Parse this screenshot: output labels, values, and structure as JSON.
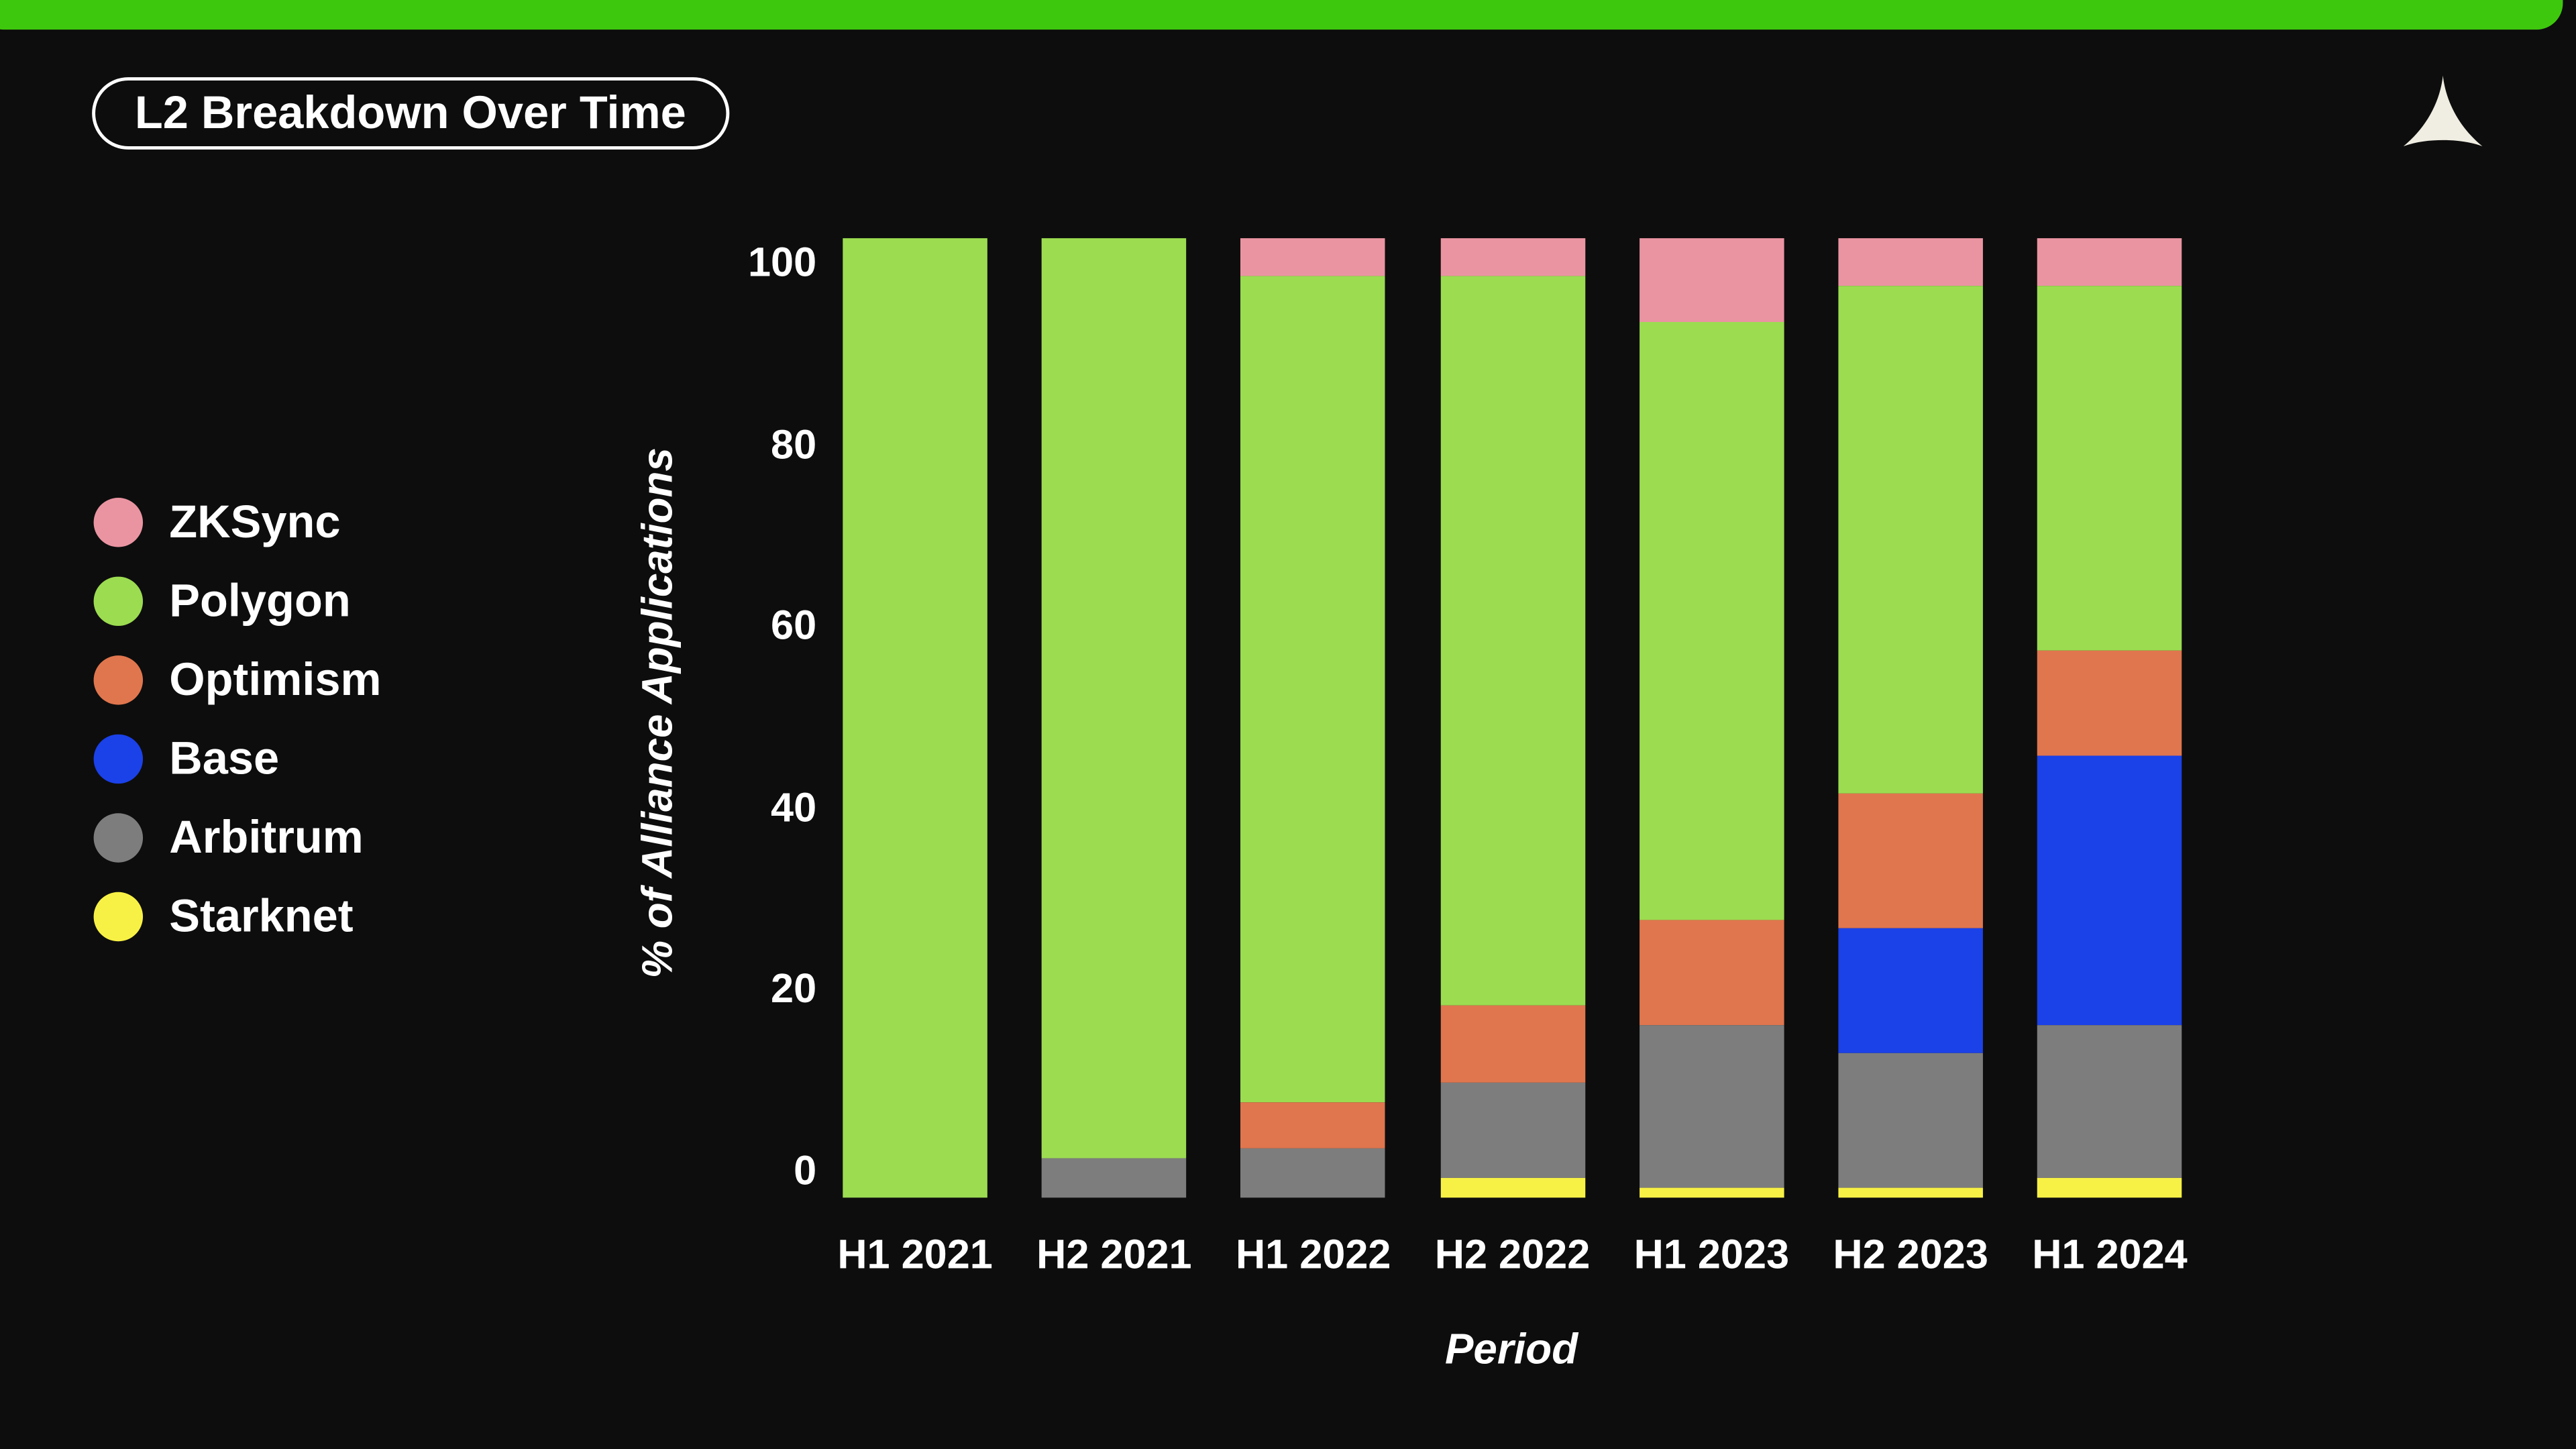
{
  "page": {
    "background": "#0d0d0d",
    "top_bar_color": "#3ec80d",
    "title": "L2 Breakdown Over Time",
    "logo": {
      "name": "artemis-triangle-logo",
      "shape": "concave-triangle",
      "color": "#f0ede2"
    },
    "text_color": "#ffffff"
  },
  "chart_data": {
    "type": "bar",
    "stacked": true,
    "units": "percent",
    "title": "L2 Breakdown Over Time",
    "xlabel": "Period",
    "ylabel": "% of Alliance Applications",
    "ylim": [
      0,
      100
    ],
    "yticks": [
      0,
      20,
      40,
      60,
      80,
      100
    ],
    "grid": false,
    "legend_position": "left",
    "categories": [
      "H1 2021",
      "H2 2021",
      "H1 2022",
      "H2 2022",
      "H1 2023",
      "H2 2023",
      "H1 2024"
    ],
    "stack_order_top_to_bottom": [
      "ZKSync",
      "Polygon",
      "Optimism",
      "Base",
      "Arbitrum",
      "Starknet"
    ],
    "series": [
      {
        "name": "ZKSync",
        "color": "#ea94a2",
        "values": [
          0,
          0,
          3.9,
          3.9,
          8.7,
          5.0,
          4.9
        ]
      },
      {
        "name": "Polygon",
        "color": "#9cdc51",
        "values": [
          100,
          95.9,
          86.1,
          76.1,
          62.3,
          52.9,
          38.1
        ]
      },
      {
        "name": "Optimism",
        "color": "#e0764e",
        "values": [
          0,
          0,
          4.9,
          8.0,
          11.1,
          14.1,
          11.0
        ]
      },
      {
        "name": "Base",
        "color": "#1b41e8",
        "values": [
          0,
          0,
          0,
          0,
          0,
          12.9,
          28.1
        ]
      },
      {
        "name": "Arbitrum",
        "color": "#7d7d7d",
        "values": [
          0,
          4.1,
          5.1,
          9.9,
          16.9,
          14.1,
          15.9
        ]
      },
      {
        "name": "Starknet",
        "color": "#f8f145",
        "values": [
          0,
          0,
          0,
          2.1,
          1.0,
          1.0,
          2.0
        ]
      }
    ]
  }
}
